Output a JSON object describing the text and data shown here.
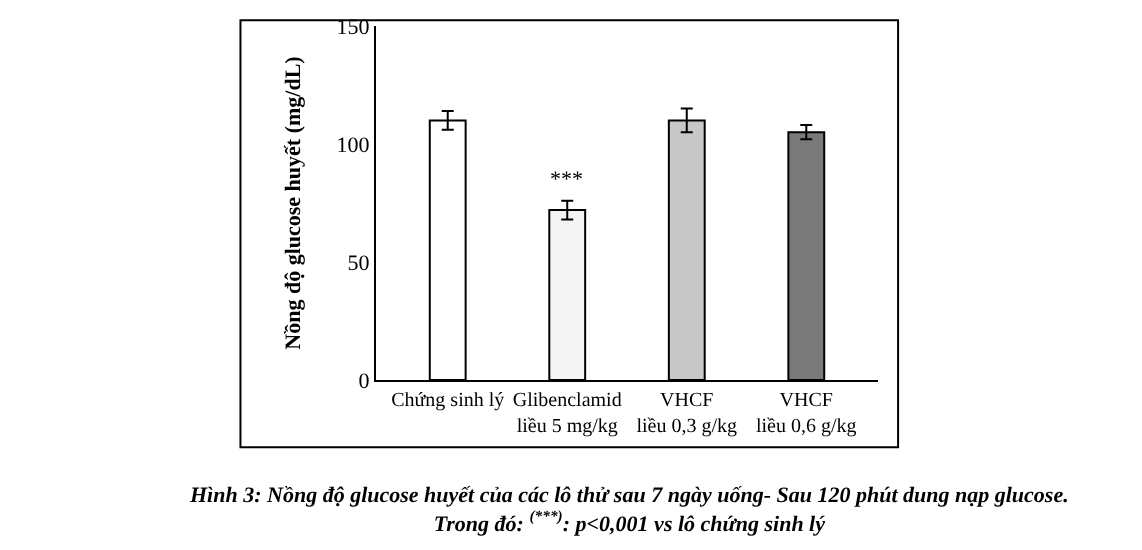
{
  "chart_data": {
    "type": "bar",
    "ylabel": "Nồng độ glucose huyết (mg/dL)",
    "categories": [
      "Chứng sinh lý",
      "Glibenclamid\nliều 5 mg/kg",
      "VHCF\nliều 0,3 g/kg",
      "VHCF\nliều 0,6 g/kg"
    ],
    "values": [
      110,
      72,
      110,
      105
    ],
    "errors": [
      4,
      4,
      5,
      3
    ],
    "colors": [
      "#ffffff",
      "#f4f4f4",
      "#c8c8c8",
      "#7a7a7a"
    ],
    "ylim": [
      0,
      150
    ],
    "yticks": [
      0,
      50,
      100,
      150
    ],
    "annotations": [
      {
        "text": "***",
        "x": "Glibenclamid\nliều 5 mg/kg",
        "y": 76
      },
      "Hình 3: Nồng độ glucose huyết của các lô thử sau 7 ngày uống- Sau 120 phút dung nạp glucose.\nTrong đó: $^{(***)}$: p<0,001 vs lô chứng sinh lý"
    ]
  }
}
